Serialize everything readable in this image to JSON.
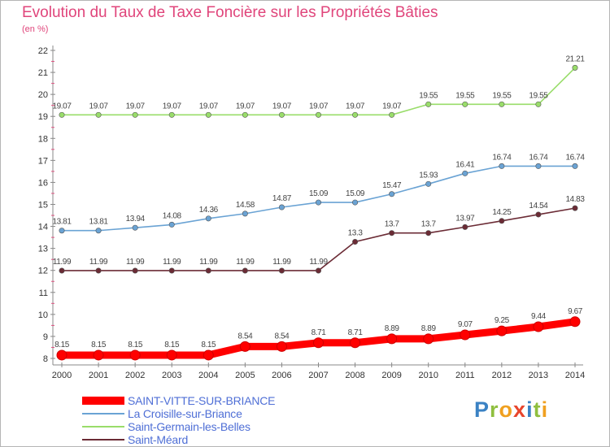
{
  "title": "Evolution du Taux de Taxe Foncière sur les Propriétés Bâties",
  "unit": "(en %)",
  "logo": {
    "letters": [
      "P",
      "r",
      "o",
      "x",
      "i",
      "t",
      "i"
    ],
    "colors": [
      "#3b82c4",
      "#8fbf3f",
      "#f0a020",
      "#e8452c",
      "#3b82c4",
      "#8fbf3f",
      "#f0a020"
    ]
  },
  "chart_data": {
    "type": "line",
    "title": "Evolution du Taux de Taxe Foncière sur les Propriétés Bâties",
    "ylabel": "(en %)",
    "x": [
      "2000",
      "2001",
      "2002",
      "2003",
      "2004",
      "2005",
      "2006",
      "2007",
      "2008",
      "2009",
      "2010",
      "2011",
      "2012",
      "2013",
      "2014"
    ],
    "ylim": [
      8,
      22
    ],
    "yticks": [
      "8",
      "9",
      "10",
      "11",
      "12",
      "13",
      "14",
      "15",
      "16",
      "17",
      "18",
      "19",
      "20",
      "21",
      "22"
    ],
    "grid": false,
    "legend_position": "bottom-left",
    "series": [
      {
        "name": "SAINT-VITTE-SUR-BRIANCE",
        "color": "#ff0000",
        "thick": true,
        "values": [
          8.15,
          8.15,
          8.15,
          8.15,
          8.15,
          8.54,
          8.54,
          8.71,
          8.71,
          8.89,
          8.89,
          9.07,
          9.25,
          9.44,
          9.67
        ],
        "labels": [
          "8.15",
          "8.15",
          "8.15",
          "8.15",
          "8.15",
          "8.54",
          "8.54",
          "8.71",
          "8.71",
          "8.89",
          "8.89",
          "9.07",
          "9.25",
          "9.44",
          "9.67"
        ]
      },
      {
        "name": "La Croisille-sur-Briance",
        "color": "#6aa3d4",
        "thick": false,
        "values": [
          13.81,
          13.81,
          13.94,
          14.08,
          14.36,
          14.58,
          14.87,
          15.09,
          15.09,
          15.47,
          15.93,
          16.41,
          16.74,
          16.74,
          16.74
        ],
        "labels": [
          "13.81",
          "13.81",
          "13.94",
          "14.08",
          "14.36",
          "14.58",
          "14.87",
          "15.09",
          "15.09",
          "15.47",
          "15.93",
          "16.41",
          "16.74",
          "16.74",
          "16.74"
        ]
      },
      {
        "name": "Saint-Germain-les-Belles",
        "color": "#99dd6a",
        "thick": false,
        "values": [
          19.07,
          19.07,
          19.07,
          19.07,
          19.07,
          19.07,
          19.07,
          19.07,
          19.07,
          19.07,
          19.55,
          19.55,
          19.55,
          19.55,
          21.21
        ],
        "labels": [
          "19.07",
          "19.07",
          "19.07",
          "19.07",
          "19.07",
          "19.07",
          "19.07",
          "19.07",
          "19.07",
          "19.07",
          "19.55",
          "19.55",
          "19.55",
          "19.55",
          "21.21"
        ]
      },
      {
        "name": "Saint-Méard",
        "color": "#6b2b35",
        "thick": false,
        "values": [
          11.99,
          11.99,
          11.99,
          11.99,
          11.99,
          11.99,
          11.99,
          11.99,
          13.3,
          13.7,
          13.7,
          13.97,
          14.25,
          14.54,
          14.83
        ],
        "labels": [
          "11.99",
          "11.99",
          "11.99",
          "11.99",
          "11.99",
          "11.99",
          "11.99",
          "11.99",
          "13.3",
          "13.7",
          "13.7",
          "13.97",
          "14.25",
          "14.54",
          "14.83"
        ]
      }
    ]
  }
}
